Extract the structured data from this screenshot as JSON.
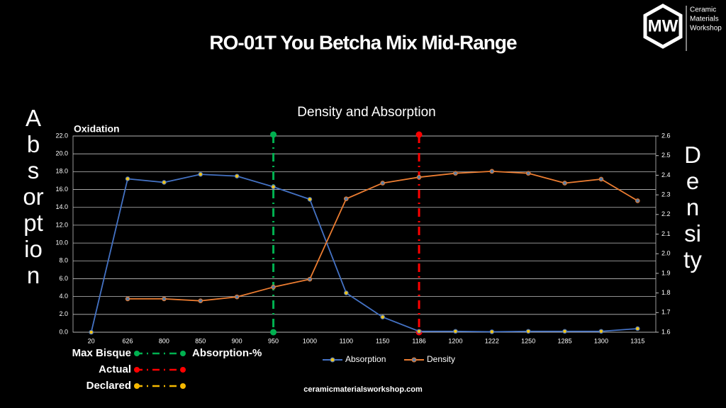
{
  "header": {
    "title": "RO-01T You Betcha Mix Mid-Range",
    "logo_mark": "MW",
    "logo_text": [
      "Ceramic",
      "Materials",
      "Workshop"
    ]
  },
  "footer": "ceramicmaterialsworkshop.com",
  "chart_data": {
    "type": "line",
    "title": "Density and Absorption",
    "annotation": "Oxidation",
    "y_label": "Absorption",
    "y2_label": "Density",
    "categories": [
      "20",
      "626",
      "800",
      "850",
      "900",
      "950",
      "1000",
      "1100",
      "1150",
      "1186",
      "1200",
      "1222",
      "1250",
      "1285",
      "1300",
      "1315"
    ],
    "series": [
      {
        "name": "Absorption",
        "color": "#4472c4",
        "values": [
          0,
          17.2,
          16.8,
          17.7,
          17.5,
          16.3,
          14.9,
          4.4,
          1.7,
          0.1,
          0.1,
          0.05,
          0.1,
          0.1,
          0.1,
          0.4
        ]
      },
      {
        "name": "Density",
        "color": "#ed7d31",
        "axis": "y2",
        "values": [
          null,
          1.77,
          1.77,
          1.76,
          1.78,
          1.83,
          1.87,
          2.28,
          2.36,
          2.39,
          2.41,
          2.42,
          2.41,
          2.36,
          2.38,
          2.27
        ]
      }
    ],
    "ylim": [
      0,
      22
    ],
    "yticks": [
      {
        "value": 0,
        "label": "0.0"
      },
      {
        "value": 2,
        "label": "2.0"
      },
      {
        "value": 4,
        "label": "4.0"
      },
      {
        "value": 6,
        "label": "6.0"
      },
      {
        "value": 8,
        "label": "8.0"
      },
      {
        "value": 10,
        "label": "10.0"
      },
      {
        "value": 12,
        "label": "12.0"
      },
      {
        "value": 14,
        "label": "14.0"
      },
      {
        "value": 16,
        "label": "16.0"
      },
      {
        "value": 18,
        "label": "18.0"
      },
      {
        "value": 20,
        "label": "20.0"
      },
      {
        "value": 22,
        "label": "22.0"
      }
    ],
    "y2lim": [
      1.6,
      2.6
    ],
    "y2ticks": [
      1.6,
      1.7,
      1.8,
      1.9,
      {
        "value": 2,
        "label": "2.0"
      },
      2.1,
      2.2,
      2.3,
      2.4,
      2.5,
      2.6
    ],
    "grid": true,
    "markers": [
      {
        "name": "Max Bisque",
        "category": "950",
        "color": "#00b050"
      },
      {
        "name": "Actual",
        "category": "1186",
        "color": "#ff0000"
      },
      {
        "name": "Declared",
        "color": "#f5b800"
      }
    ],
    "marker_note": "Absorption-%"
  }
}
